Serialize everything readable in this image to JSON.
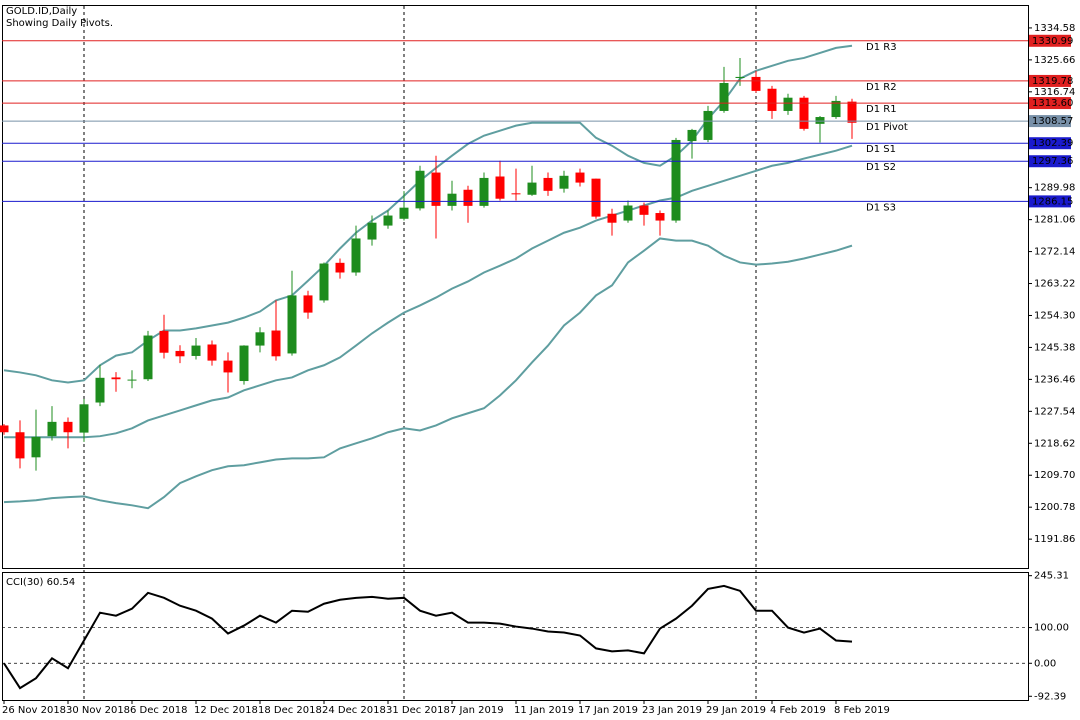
{
  "chart_data": [
    {
      "type": "candlestick",
      "title": "GOLD.ID,Daily",
      "subtitle": "Showing Daily Pivots.",
      "categories": [
        "26 Nov 2018",
        null,
        null,
        null,
        "30 Nov 2018",
        null,
        null,
        null,
        "6 Dec 2018",
        null,
        null,
        null,
        "12 Dec 2018",
        null,
        null,
        null,
        "18 Dec 2018",
        null,
        null,
        null,
        "24 Dec 2018",
        null,
        null,
        null,
        "31 Dec 2018",
        null,
        null,
        null,
        "7 Jan 2019",
        null,
        null,
        null,
        "11 Jan 2019",
        null,
        null,
        null,
        "17 Jan 2019",
        null,
        null,
        null,
        "23 Jan 2019",
        null,
        null,
        null,
        "29 Jan 2019",
        null,
        null,
        null,
        "4 Feb 2019",
        null,
        null,
        null,
        "8 Feb 2019",
        null
      ],
      "open": [
        1223.6,
        1221.7,
        1214.7,
        1220.6,
        1224.6,
        1221.6,
        1230,
        1237,
        1236.3,
        1236.5,
        1250,
        1244.4,
        1243,
        1246.2,
        1241.7,
        1236,
        1245.9,
        1250.1,
        1243.7,
        1259.9,
        1258.5,
        1269,
        1266.3,
        1275.5,
        1279.4,
        1281.3,
        1284.2,
        1294.2,
        1284.9,
        1289.4,
        1284.9,
        1293.1,
        1288.4,
        1288,
        1292.7,
        1289.7,
        1294.2,
        1292.5,
        1282.7,
        1280.8,
        1285,
        1282.9,
        1280.8,
        1303,
        1303.3,
        1311.4,
        1320.6,
        1320.9,
        1317.6,
        1311.4,
        1315.1,
        1307.8,
        1309.7,
        1314
      ],
      "high": [
        1224,
        1225,
        1228,
        1229,
        1225.8,
        1231,
        1240.5,
        1238.5,
        1239,
        1250,
        1254.5,
        1246,
        1248,
        1247.3,
        1244,
        1246,
        1251,
        1258.5,
        1266.8,
        1261.2,
        1269.1,
        1270.2,
        1279.4,
        1282.2,
        1283.6,
        1289,
        1296.1,
        1298.9,
        1291.9,
        1290.5,
        1294.2,
        1297.5,
        1295.3,
        1296.1,
        1294.2,
        1294.7,
        1295.3,
        1292.5,
        1284.1,
        1286.4,
        1285.8,
        1283.6,
        1303.9,
        1306.4,
        1312.8,
        1323.7,
        1326.2,
        1322.6,
        1318.4,
        1316.2,
        1315.6,
        1310,
        1315.6,
        1314.8
      ],
      "low": [
        1221,
        1211.6,
        1211,
        1219.4,
        1217.2,
        1219,
        1229,
        1233,
        1234,
        1236,
        1242.3,
        1241,
        1242,
        1240.3,
        1232.8,
        1235,
        1244,
        1241.7,
        1243.1,
        1253.4,
        1257.9,
        1264.6,
        1265.4,
        1273.8,
        1278.5,
        1280.8,
        1283.6,
        1275.8,
        1283.6,
        1280.2,
        1284.4,
        1286.4,
        1286.4,
        1287.7,
        1287.7,
        1288.6,
        1290.3,
        1281.3,
        1276.6,
        1280.2,
        1279.4,
        1276.6,
        1280.2,
        1298.1,
        1302.7,
        1310.9,
        1318.4,
        1316.5,
        1309.2,
        1310.3,
        1305.9,
        1302.6,
        1309.2,
        1303.6
      ],
      "close": [
        1221.7,
        1214.4,
        1220.4,
        1224.6,
        1221.7,
        1229.5,
        1236.9,
        1236.5,
        1236.4,
        1248.7,
        1243.9,
        1242.9,
        1245.9,
        1241.7,
        1238.4,
        1245.9,
        1249.6,
        1242.9,
        1259.9,
        1255.1,
        1268.8,
        1266.3,
        1275.8,
        1280.2,
        1282.2,
        1284.4,
        1294.7,
        1284.9,
        1288.3,
        1284.9,
        1292.7,
        1286.9,
        1288.2,
        1291.4,
        1289.1,
        1293.3,
        1291.4,
        1281.9,
        1280.2,
        1285,
        1282.4,
        1280.8,
        1303.3,
        1306.1,
        1311.4,
        1319.2,
        1320.9,
        1317,
        1311.4,
        1315.1,
        1306.4,
        1309.7,
        1314.2,
        1308.1
      ],
      "up_color": "#1e8c1e",
      "down_color": "#ff0000",
      "bands": {
        "color": "#5f9ea0",
        "upper": [
          1239.0,
          1238.4,
          1237.6,
          1236.2,
          1235.6,
          1236.2,
          1240.4,
          1243.1,
          1244.0,
          1247.3,
          1250.1,
          1250.1,
          1250.7,
          1251.5,
          1252.3,
          1253.7,
          1255.4,
          1258.5,
          1259.9,
          1264.0,
          1268.2,
          1273.0,
          1277.4,
          1280.8,
          1283.6,
          1287.7,
          1291.9,
          1295.5,
          1298.9,
          1302.2,
          1304.5,
          1305.9,
          1307.3,
          1308.1,
          1308.1,
          1308.1,
          1308.1,
          1303.9,
          1301.7,
          1298.9,
          1296.9,
          1296.1,
          1298.9,
          1303.1,
          1309.2,
          1314.2,
          1320.4,
          1322.6,
          1324.0,
          1325.4,
          1326.2,
          1327.6,
          1329.0,
          1329.6
        ],
        "middle": [
          1220.3,
          1220.3,
          1220.3,
          1220.3,
          1220.3,
          1220.3,
          1220.6,
          1221.4,
          1222.8,
          1225.0,
          1226.4,
          1227.8,
          1229.2,
          1230.6,
          1231.4,
          1233.4,
          1234.8,
          1236.2,
          1237.0,
          1239.0,
          1240.4,
          1242.6,
          1245.9,
          1249.3,
          1252.3,
          1255.1,
          1257.1,
          1259.3,
          1261.8,
          1263.8,
          1266.3,
          1268.2,
          1270.2,
          1273.0,
          1275.2,
          1277.4,
          1278.8,
          1280.8,
          1282.2,
          1283.6,
          1285.0,
          1286.4,
          1287.2,
          1289.1,
          1290.5,
          1291.9,
          1293.3,
          1294.7,
          1296.1,
          1296.9,
          1298.1,
          1299.2,
          1300.3,
          1301.7
        ],
        "lower": [
          1202.2,
          1202.4,
          1202.7,
          1203.3,
          1203.6,
          1203.8,
          1202.7,
          1201.9,
          1201.3,
          1200.5,
          1203.6,
          1207.5,
          1209.4,
          1211.1,
          1212.2,
          1212.5,
          1213.3,
          1214.1,
          1214.4,
          1214.4,
          1214.7,
          1217.2,
          1218.6,
          1220.0,
          1221.7,
          1222.8,
          1222.2,
          1223.6,
          1225.6,
          1227.0,
          1228.4,
          1232.0,
          1236.2,
          1241.2,
          1245.9,
          1251.5,
          1255.1,
          1259.9,
          1262.7,
          1269.1,
          1272.4,
          1275.8,
          1275.2,
          1275.2,
          1273.8,
          1271.0,
          1269.1,
          1268.5,
          1268.8,
          1269.3,
          1270.2,
          1271.3,
          1272.4,
          1273.8
        ]
      },
      "pivots": [
        {
          "label": "D1 R3",
          "value": 1330.99,
          "color": "#e02020"
        },
        {
          "label": "D1 R2",
          "value": 1319.78,
          "color": "#e02020"
        },
        {
          "label": "D1 R1",
          "value": 1313.6,
          "value_label": "1313.60",
          "color": "#e02020"
        },
        {
          "label": "D1 Pivot",
          "value": 1308.57,
          "color": "#7890a8"
        },
        {
          "label": "D1 S1",
          "value": 1302.39,
          "color": "#1a1acd"
        },
        {
          "label": "D1 S2",
          "value": 1297.36,
          "color": "#1a1acd"
        },
        {
          "label": "D1 S3",
          "value": 1286.15,
          "color": "#1a1acd"
        }
      ],
      "ylim": [
        1183.8,
        1340.7
      ],
      "yticks": [
        1334.58,
        1325.66,
        1316.74,
        1289.98,
        1281.06,
        1272.14,
        1263.22,
        {
          "value": 1254.3,
          "label": "1254.30"
        },
        1245.38,
        1236.46,
        1227.54,
        1218.62,
        {
          "value": 1209.7,
          "label": "1209.70"
        },
        1200.78,
        1191.86
      ]
    },
    {
      "type": "line",
      "title": "CCI(30) 60.54",
      "color": "#000000",
      "values": [
        0,
        -69.4,
        -41.7,
        13.9,
        -13.9,
        63.9,
        141.7,
        133.3,
        152.8,
        197.2,
        183.3,
        161.1,
        147.2,
        125,
        83.3,
        105.6,
        133.3,
        113.9,
        147.2,
        144.4,
        166.7,
        177.8,
        183.3,
        186.1,
        180.6,
        183.3,
        147.2,
        133.3,
        141.7,
        113.9,
        113.9,
        111.1,
        102.8,
        97.2,
        88.9,
        86.1,
        77.8,
        41.7,
        33.3,
        36.1,
        27.8,
        97.2,
        125,
        161.1,
        208.3,
        216.7,
        202.8,
        147.2,
        147.2,
        100,
        86.1,
        97.2,
        63.9,
        60.54
      ],
      "ylim": [
        -102.8,
        252.8
      ],
      "yticks": [
        245.31,
        {
          "value": 100,
          "label": "100.00"
        },
        {
          "value": 0,
          "label": "0.00"
        },
        -92.39
      ],
      "level_lines": [
        100,
        0
      ]
    }
  ]
}
